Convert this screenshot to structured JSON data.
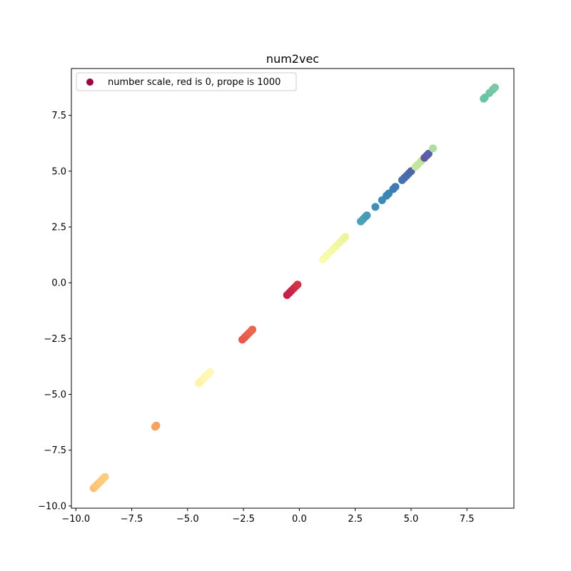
{
  "chart_data": {
    "type": "scatter",
    "title": "num2vec",
    "xlabel": "",
    "ylabel": "",
    "xlim": [
      -10.2,
      9.6
    ],
    "ylim": [
      -10.1,
      9.6
    ],
    "x_ticks": [
      -10.0,
      -7.5,
      -5.0,
      -2.5,
      0.0,
      2.5,
      5.0,
      7.5
    ],
    "y_ticks": [
      -10.0,
      -7.5,
      -5.0,
      -2.5,
      0.0,
      2.5,
      5.0,
      7.5
    ],
    "x_tick_labels": [
      "−10.0",
      "−7.5",
      "−5.0",
      "−2.5",
      "0.0",
      "2.5",
      "5.0",
      "7.5"
    ],
    "y_tick_labels": [
      "−10.0",
      "−7.5",
      "−5.0",
      "−2.5",
      "0.0",
      "2.5",
      "5.0",
      "7.5"
    ],
    "grid": false,
    "legend": {
      "position": "top-left",
      "label": "number scale, red is 0, prope is 1000",
      "marker_color": "#9e0142"
    },
    "colormap": "Spectral",
    "series": [
      {
        "name": "number scale, red is 0, prope is 1000",
        "points": [
          {
            "x": -9.2,
            "y": -9.2,
            "color": "#fdbf6f"
          },
          {
            "x": -9.1,
            "y": -9.1,
            "color": "#fdc576"
          },
          {
            "x": -9.0,
            "y": -9.0,
            "color": "#fdc576"
          },
          {
            "x": -8.9,
            "y": -8.9,
            "color": "#fec97a"
          },
          {
            "x": -8.8,
            "y": -8.8,
            "color": "#fec97a"
          },
          {
            "x": -8.7,
            "y": -8.7,
            "color": "#fecc7e"
          },
          {
            "x": -6.45,
            "y": -6.45,
            "color": "#f4a460"
          },
          {
            "x": -6.4,
            "y": -6.4,
            "color": "#f4a460"
          },
          {
            "x": -4.5,
            "y": -4.5,
            "color": "#fff3aa"
          },
          {
            "x": -4.4,
            "y": -4.4,
            "color": "#fff3aa"
          },
          {
            "x": -4.3,
            "y": -4.3,
            "color": "#fef5b0"
          },
          {
            "x": -4.2,
            "y": -4.2,
            "color": "#fef5b0"
          },
          {
            "x": -4.1,
            "y": -4.1,
            "color": "#fef7b6"
          },
          {
            "x": -4.0,
            "y": -4.0,
            "color": "#fef7b6"
          },
          {
            "x": -2.55,
            "y": -2.55,
            "color": "#e55a4a"
          },
          {
            "x": -2.45,
            "y": -2.45,
            "color": "#e55a4a"
          },
          {
            "x": -2.35,
            "y": -2.35,
            "color": "#e65c4b"
          },
          {
            "x": -2.25,
            "y": -2.25,
            "color": "#e8624d"
          },
          {
            "x": -2.15,
            "y": -2.15,
            "color": "#e8624d"
          },
          {
            "x": -2.1,
            "y": -2.1,
            "color": "#ea684f"
          },
          {
            "x": -0.55,
            "y": -0.55,
            "color": "#c41e4a"
          },
          {
            "x": -0.45,
            "y": -0.45,
            "color": "#c72349"
          },
          {
            "x": -0.35,
            "y": -0.35,
            "color": "#c72349"
          },
          {
            "x": -0.25,
            "y": -0.25,
            "color": "#ca2848"
          },
          {
            "x": -0.15,
            "y": -0.15,
            "color": "#cc2d47"
          },
          {
            "x": -0.08,
            "y": -0.08,
            "color": "#cf3446"
          },
          {
            "x": 1.05,
            "y": 1.05,
            "color": "#f8fbb0"
          },
          {
            "x": 1.2,
            "y": 1.2,
            "color": "#f6faab"
          },
          {
            "x": 1.35,
            "y": 1.35,
            "color": "#f6faab"
          },
          {
            "x": 1.5,
            "y": 1.5,
            "color": "#f4f9a8"
          },
          {
            "x": 1.65,
            "y": 1.65,
            "color": "#f2f8a4"
          },
          {
            "x": 1.8,
            "y": 1.8,
            "color": "#f0f7a2"
          },
          {
            "x": 1.95,
            "y": 1.95,
            "color": "#eef6a0"
          },
          {
            "x": 2.05,
            "y": 2.05,
            "color": "#ecf59e"
          },
          {
            "x": 2.75,
            "y": 2.75,
            "color": "#4ea2b7"
          },
          {
            "x": 2.85,
            "y": 2.85,
            "color": "#4ba0b8"
          },
          {
            "x": 2.95,
            "y": 2.95,
            "color": "#489db8"
          },
          {
            "x": 3.02,
            "y": 3.02,
            "color": "#459ab8"
          },
          {
            "x": 3.4,
            "y": 3.4,
            "color": "#3d8fb8"
          },
          {
            "x": 3.7,
            "y": 3.7,
            "color": "#3b8bb7"
          },
          {
            "x": 3.9,
            "y": 3.9,
            "color": "#3a87b6"
          },
          {
            "x": 4.0,
            "y": 4.0,
            "color": "#3985b5"
          },
          {
            "x": 4.2,
            "y": 4.2,
            "color": "#3c7db4"
          },
          {
            "x": 4.3,
            "y": 4.3,
            "color": "#3e7ab3"
          },
          {
            "x": 4.6,
            "y": 4.6,
            "color": "#4673b0"
          },
          {
            "x": 4.7,
            "y": 4.7,
            "color": "#4870ae"
          },
          {
            "x": 4.8,
            "y": 4.8,
            "color": "#4a6dac"
          },
          {
            "x": 4.9,
            "y": 4.9,
            "color": "#4c6aab"
          },
          {
            "x": 5.0,
            "y": 5.0,
            "color": "#4e67a9"
          },
          {
            "x": 5.2,
            "y": 5.2,
            "color": "#c5e79f"
          },
          {
            "x": 5.3,
            "y": 5.3,
            "color": "#c3e69f"
          },
          {
            "x": 5.45,
            "y": 5.45,
            "color": "#c0e59f"
          },
          {
            "x": 5.6,
            "y": 5.6,
            "color": "#6355a4"
          },
          {
            "x": 5.7,
            "y": 5.7,
            "color": "#5f5aa6"
          },
          {
            "x": 5.78,
            "y": 5.78,
            "color": "#5b5ea8"
          },
          {
            "x": 5.98,
            "y": 6.02,
            "color": "#addd9f"
          },
          {
            "x": 8.25,
            "y": 8.25,
            "color": "#69c2a5"
          },
          {
            "x": 8.3,
            "y": 8.3,
            "color": "#6bc3a5"
          },
          {
            "x": 8.5,
            "y": 8.5,
            "color": "#70c5a4"
          },
          {
            "x": 8.65,
            "y": 8.65,
            "color": "#74c7a4"
          },
          {
            "x": 8.75,
            "y": 8.75,
            "color": "#78c9a4"
          }
        ]
      }
    ]
  }
}
